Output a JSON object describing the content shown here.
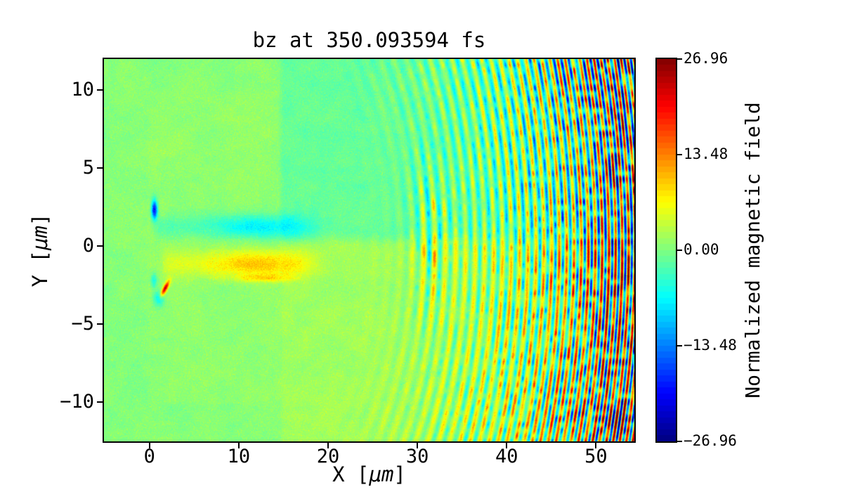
{
  "figure": {
    "background": "#ffffff",
    "text_color": "#000000"
  },
  "chart_data": {
    "type": "heatmap",
    "title": "bz at 350.093594 fs",
    "field_name": "bz",
    "time_fs": 350.093594,
    "xlabel": "X [μm]",
    "xlabel_prefix": "X [",
    "xlabel_unit": "μm",
    "xlabel_suffix": "]",
    "ylabel": "Y [μm]",
    "ylabel_prefix": "Y [",
    "ylabel_unit": "μm",
    "ylabel_suffix": "]",
    "xlim": [
      -5.1,
      54.3
    ],
    "ylim": [
      -12.5,
      12.0
    ],
    "x_ticks": [
      0,
      10,
      20,
      30,
      40,
      50
    ],
    "x_tick_labels": [
      "0",
      "10",
      "20",
      "30",
      "40",
      "50"
    ],
    "y_ticks": [
      10,
      5,
      0,
      -5,
      -10
    ],
    "y_tick_labels": [
      "10",
      "5",
      "0",
      "−5",
      "−10"
    ],
    "colormap": "jet",
    "colorbar": {
      "label": "Normalized magnetic field",
      "vmin": -26.96,
      "vmax": 26.96,
      "ticks": [
        26.96,
        13.48,
        0.0,
        -13.48,
        -26.96
      ],
      "tick_labels": [
        "26.96",
        "13.48",
        "0.00",
        "−13.48",
        "−26.96"
      ],
      "steps": 64
    },
    "features": {
      "background_level": 0.35,
      "white_noise_amp": 1.15,
      "smooth_noise_amp": 0.9,
      "window_rect": {
        "x0": -0.2,
        "x1": 14.6,
        "y0": -10.1,
        "y1": 9.95,
        "tint": 0.5
      },
      "right_split_x": 14.7,
      "upper_tint": -1.7,
      "lower_tint": 1.35,
      "channel": {
        "cyan_y": 1.25,
        "cyan_sigma": 0.75,
        "cyan_amp": -3.3,
        "yellow_y": -1.15,
        "yellow_sigma": 0.85,
        "yellow_amp": 3.6,
        "x_start": 0.2,
        "x_end": 19.0,
        "hotspot_x": 12.0,
        "hotspot_gain": 1.35,
        "orange_line": {
          "y": -2.05,
          "sigma": 0.22,
          "x_center": 13.0,
          "x_sigma": 2.8,
          "amp": 5.5
        }
      },
      "blue_blob": {
        "x": 0.55,
        "y": 2.35,
        "sx": 0.33,
        "sy": 0.6,
        "amp": -21
      },
      "red_streak": {
        "x": 1.75,
        "y": -2.7,
        "s_along": 0.62,
        "s_perp": 0.2,
        "amp": 23
      },
      "cyan_spots": [
        {
          "x": 1.05,
          "y": -3.35,
          "sx": 0.55,
          "sy": 0.45,
          "amp": -8
        },
        {
          "x": 0.5,
          "y": -2.2,
          "sx": 0.35,
          "sy": 0.5,
          "amp": -6
        },
        {
          "x": 0.85,
          "y": 1.65,
          "sx": 0.6,
          "sy": 0.4,
          "amp": -5
        }
      ],
      "rings": {
        "cx": 8.0,
        "cy": 0.0,
        "r_start": 14.0,
        "r_full": 32.0,
        "amp_max": 27.0,
        "freq0": 0.2,
        "chirp": 0.026,
        "warm_bias": 1.1,
        "packet": {
          "r": 23.5,
          "r_sigma": 1.8,
          "y_center": 0.5,
          "y_sigma": 4.5,
          "amp": 8.5
        }
      }
    }
  }
}
